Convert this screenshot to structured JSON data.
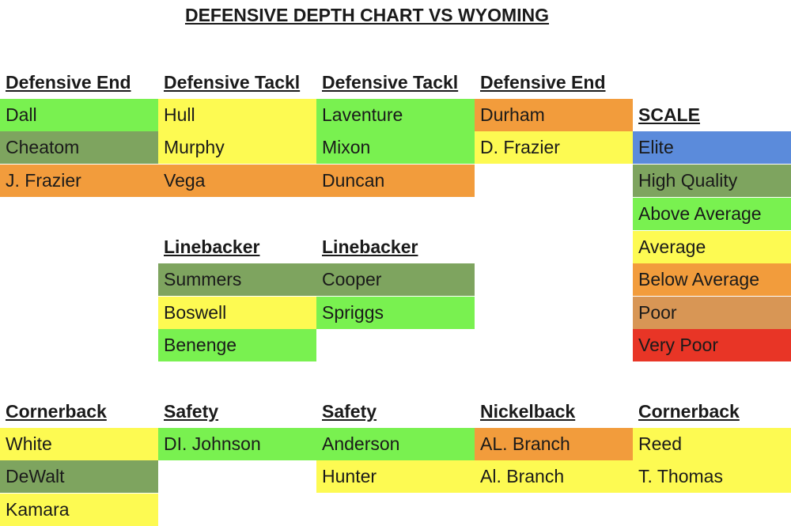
{
  "title": "DEFENSIVE DEPTH CHART VS WYOMING",
  "colors": {
    "elite": "#5b8bdb",
    "high_quality": "#7ea45f",
    "above_average": "#79f150",
    "average": "#fdfa52",
    "below_average": "#f29c3c",
    "poor": "#d89655",
    "very_poor": "#e83526"
  },
  "front": {
    "de_left": {
      "header": "Defensive End",
      "players": [
        {
          "name": "Dall",
          "rating": "above_average"
        },
        {
          "name": "Cheatom",
          "rating": "high_quality"
        },
        {
          "name": "J. Frazier",
          "rating": "below_average"
        }
      ]
    },
    "dt_left": {
      "header": "Defensive Tackl",
      "players": [
        {
          "name": "Hull",
          "rating": "average"
        },
        {
          "name": "Murphy",
          "rating": "average"
        },
        {
          "name": "Vega",
          "rating": "below_average"
        }
      ]
    },
    "dt_right": {
      "header": "Defensive Tackl",
      "players": [
        {
          "name": "Laventure",
          "rating": "above_average"
        },
        {
          "name": "Mixon",
          "rating": "above_average"
        },
        {
          "name": "Duncan",
          "rating": "below_average"
        }
      ]
    },
    "de_right": {
      "header": "Defensive End",
      "players": [
        {
          "name": "Durham",
          "rating": "below_average"
        },
        {
          "name": "D. Frazier",
          "rating": "average"
        }
      ]
    }
  },
  "linebackers": {
    "lb_left": {
      "header": "Linebacker",
      "players": [
        {
          "name": "Summers",
          "rating": "high_quality"
        },
        {
          "name": "Boswell",
          "rating": "average"
        },
        {
          "name": "Benenge",
          "rating": "above_average"
        }
      ]
    },
    "lb_right": {
      "header": "Linebacker",
      "players": [
        {
          "name": "Cooper",
          "rating": "high_quality"
        },
        {
          "name": "Spriggs",
          "rating": "above_average"
        }
      ]
    }
  },
  "secondary": {
    "cb_left": {
      "header": "Cornerback",
      "players": [
        {
          "name": "White",
          "rating": "average"
        },
        {
          "name": "DeWalt",
          "rating": "high_quality"
        },
        {
          "name": "Kamara",
          "rating": "average"
        }
      ]
    },
    "s_left": {
      "header": "Safety",
      "players": [
        {
          "name": "DI. Johnson",
          "rating": "above_average"
        }
      ]
    },
    "s_right": {
      "header": "Safety",
      "players": [
        {
          "name": "Anderson",
          "rating": "above_average"
        },
        {
          "name": "Hunter",
          "rating": "average"
        }
      ]
    },
    "nickel": {
      "header": "Nickelback",
      "players": [
        {
          "name": "AL. Branch",
          "rating": "below_average"
        },
        {
          "name": "Al. Branch",
          "rating": "average"
        }
      ]
    },
    "cb_right": {
      "header": "Cornerback",
      "players": [
        {
          "name": "Reed",
          "rating": "average"
        },
        {
          "name": "T. Thomas",
          "rating": "average"
        }
      ]
    }
  },
  "scale": {
    "header": "SCALE",
    "levels": [
      {
        "label": "Elite",
        "rating": "elite"
      },
      {
        "label": "High Quality",
        "rating": "high_quality"
      },
      {
        "label": "Above Average",
        "rating": "above_average"
      },
      {
        "label": "Average",
        "rating": "average"
      },
      {
        "label": "Below Average",
        "rating": "below_average"
      },
      {
        "label": "Poor",
        "rating": "poor"
      },
      {
        "label": "Very Poor",
        "rating": "very_poor"
      }
    ]
  }
}
